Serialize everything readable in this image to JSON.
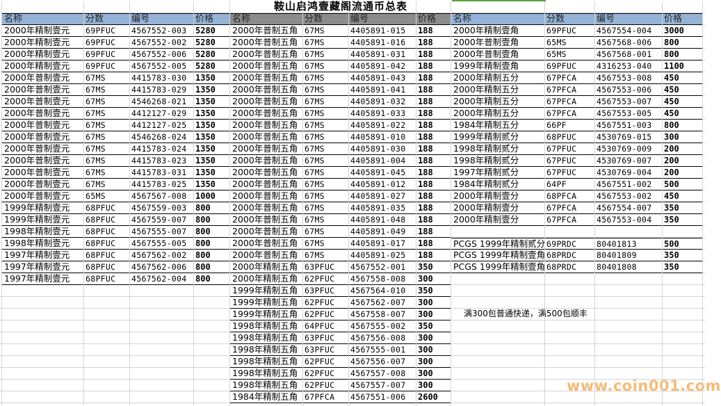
{
  "title": "鞍山启鸿壹藏阁流通币总表",
  "headers": [
    "名称",
    "分数",
    "编号",
    "价格"
  ],
  "colors": {
    "header_blue": "#95b3d7",
    "header_gray": "#8c8c8c",
    "top_bar": "#5aa03c",
    "watermark": "#f7b36a"
  },
  "tables": [
    {
      "header_color": "header_blue",
      "rows": [
        [
          "2000年精制壹元",
          "69PFUC",
          "4567552-003",
          "5280"
        ],
        [
          "2000年精制壹元",
          "69PFUC",
          "4567552-002",
          "5280"
        ],
        [
          "2000年精制壹元",
          "69PFUC",
          "4567552-006",
          "5280"
        ],
        [
          "2000年精制壹元",
          "69PFUC",
          "4567552-005",
          "5280"
        ],
        [
          "2000年普制壹元",
          "67MS",
          "4415783-030",
          "1350"
        ],
        [
          "2000年普制壹元",
          "67MS",
          "4415783-029",
          "1350"
        ],
        [
          "2000年普制壹元",
          "67MS",
          "4546268-021",
          "1350"
        ],
        [
          "2000年普制壹元",
          "67MS",
          "4412127-029",
          "1350"
        ],
        [
          "2000年普制壹元",
          "67MS",
          "4412127-025",
          "1350"
        ],
        [
          "2000年普制壹元",
          "67MS",
          "4546268-024",
          "1350"
        ],
        [
          "2000年普制壹元",
          "67MS",
          "4415783-024",
          "1350"
        ],
        [
          "2000年普制壹元",
          "67MS",
          "4415783-023",
          "1350"
        ],
        [
          "2000年普制壹元",
          "67MS",
          "4415783-031",
          "1350"
        ],
        [
          "2000年普制壹元",
          "67MS",
          "4415783-025",
          "1350"
        ],
        [
          "2000年普制壹元",
          "65MS",
          "4567567-008",
          "1000"
        ],
        [
          "1999年精制壹元",
          "68PFUC",
          "4567559-003",
          "800"
        ],
        [
          "1999年精制壹元",
          "68PFUC",
          "4567559-007",
          "800"
        ],
        [
          "1998年精制壹元",
          "68PFUC",
          "4567555-007",
          "800"
        ],
        [
          "1998年精制壹元",
          "68PFUC",
          "4567555-005",
          "800"
        ],
        [
          "1997年精制壹元",
          "68PFUC",
          "4567562-002",
          "800"
        ],
        [
          "1997年精制壹元",
          "68PFUC",
          "4567562-006",
          "800"
        ],
        [
          "1997年精制壹元",
          "68PFUC",
          "4567562-004",
          "800"
        ]
      ]
    },
    {
      "header_color": "header_gray",
      "rows": [
        [
          "2000年普制五角",
          "67MS",
          "4405891-015",
          "188"
        ],
        [
          "2000年普制五角",
          "67MS",
          "4405891-016",
          "188"
        ],
        [
          "2000年普制五角",
          "67MS",
          "4405891-031",
          "188"
        ],
        [
          "2000年普制五角",
          "67MS",
          "4405891-042",
          "188"
        ],
        [
          "2000年普制五角",
          "67MS",
          "4405891-043",
          "188"
        ],
        [
          "2000年普制五角",
          "67MS",
          "4405891-041",
          "188"
        ],
        [
          "2000年普制五角",
          "67MS",
          "4405891-032",
          "188"
        ],
        [
          "2000年普制五角",
          "67MS",
          "4405891-033",
          "188"
        ],
        [
          "2000年普制五角",
          "67MS",
          "4405891-022",
          "188"
        ],
        [
          "2000年普制五角",
          "67MS",
          "4405891-010",
          "188"
        ],
        [
          "2000年普制五角",
          "67MS",
          "4405891-030",
          "188"
        ],
        [
          "2000年普制五角",
          "67MS",
          "4405891-004",
          "188"
        ],
        [
          "2000年普制五角",
          "67MS",
          "4405891-045",
          "188"
        ],
        [
          "2000年普制五角",
          "67MS",
          "4405891-012",
          "188"
        ],
        [
          "2000年普制五角",
          "67MS",
          "4405891-027",
          "188"
        ],
        [
          "2000年普制五角",
          "67MS",
          "4405891-035",
          "188"
        ],
        [
          "2000年普制五角",
          "67MS",
          "4405891-048",
          "188"
        ],
        [
          "2000年普制五角",
          "67MS",
          "4405891-049",
          "188"
        ],
        [
          "2000年普制五角",
          "67MS",
          "4405891-017",
          "188"
        ],
        [
          "2000年普制五角",
          "67MS",
          "4405891-025",
          "188"
        ],
        [
          "2000年精制五角",
          "63PFUC",
          "4567552-001",
          "350"
        ],
        [
          "2000年精制五角",
          "62PFUC",
          "4567558-008",
          "300"
        ],
        [
          "1999年精制五角",
          "63PFUC",
          "4567564-010",
          "350"
        ],
        [
          "1999年精制五角",
          "62PFUC",
          "4567562-007",
          "300"
        ],
        [
          "1999年精制五角",
          "62PFUC",
          "4567558-007",
          "300"
        ],
        [
          "1998年精制五角",
          "64PFUC",
          "4567555-002",
          "350"
        ],
        [
          "1998年精制五角",
          "63PFUC",
          "4567556-008",
          "300"
        ],
        [
          "1998年精制五角",
          "63PFUC",
          "4567555-001",
          "300"
        ],
        [
          "1998年精制五角",
          "62PFUC",
          "4567556-007",
          "300"
        ],
        [
          "1998年精制五角",
          "62PFUC",
          "4567557-008",
          "300"
        ],
        [
          "1998年精制五角",
          "62PFUC",
          "4567557-007",
          "300"
        ],
        [
          "1984年精制五角",
          "67PFCA",
          "4567551-006",
          "2600"
        ]
      ]
    },
    {
      "header_color": "header_blue",
      "rows": [
        [
          "2000年精制壹角",
          "69PFUC",
          "4567554-004",
          "3000"
        ],
        [
          "2000年普制壹角",
          "65MS",
          "4567568-006",
          "800"
        ],
        [
          "2000年普制壹角",
          "65MS",
          "4567568-001",
          "800"
        ],
        [
          "1999年精制壹角",
          "69PFUC",
          "4316253-040",
          "1100"
        ],
        [
          "2000年精制五分",
          "67PFCA",
          "4567553-008",
          "450"
        ],
        [
          "2000年精制五分",
          "67PFCA",
          "4567553-006",
          "450"
        ],
        [
          "2000年精制五分",
          "67PFCA",
          "4567553-007",
          "450"
        ],
        [
          "2000年精制五分",
          "67PFCA",
          "4567553-005",
          "450"
        ],
        [
          "1984年精制五分",
          "66PF",
          "4567551-003",
          "800"
        ],
        [
          "1999年精制贰分",
          "68PFUC",
          "4530769-015",
          "300"
        ],
        [
          "1998年精制贰分",
          "67PFUC",
          "4530769-009",
          "200"
        ],
        [
          "1998年精制贰分",
          "67PFUC",
          "4530769-007",
          "200"
        ],
        [
          "1997年精制贰分",
          "67PFUC",
          "4530769-004",
          "200"
        ],
        [
          "1984年精制贰分",
          "64PF",
          "4567551-002",
          "500"
        ],
        [
          "2000年精制壹分",
          "68PFCA",
          "4567553-002",
          "450"
        ],
        [
          "2000年精制壹分",
          "67PFCA",
          "4567554-007",
          "350"
        ],
        [
          "2000年精制壹分",
          "67PFCA",
          "4567553-004",
          "350"
        ]
      ],
      "pcgs_rows": [
        [
          "PCGS 1999年精制贰分",
          "69PRDC",
          "80401813",
          "500"
        ],
        [
          "PCGS 1999年精制壹角",
          "68PRDC",
          "80401809",
          "350"
        ],
        [
          "PCGS 1999年精制壹角",
          "68PRDC",
          "80401808",
          "350"
        ]
      ]
    }
  ],
  "note": "满300包普通快递，满500包顺丰",
  "watermark": "www.coin001.com"
}
